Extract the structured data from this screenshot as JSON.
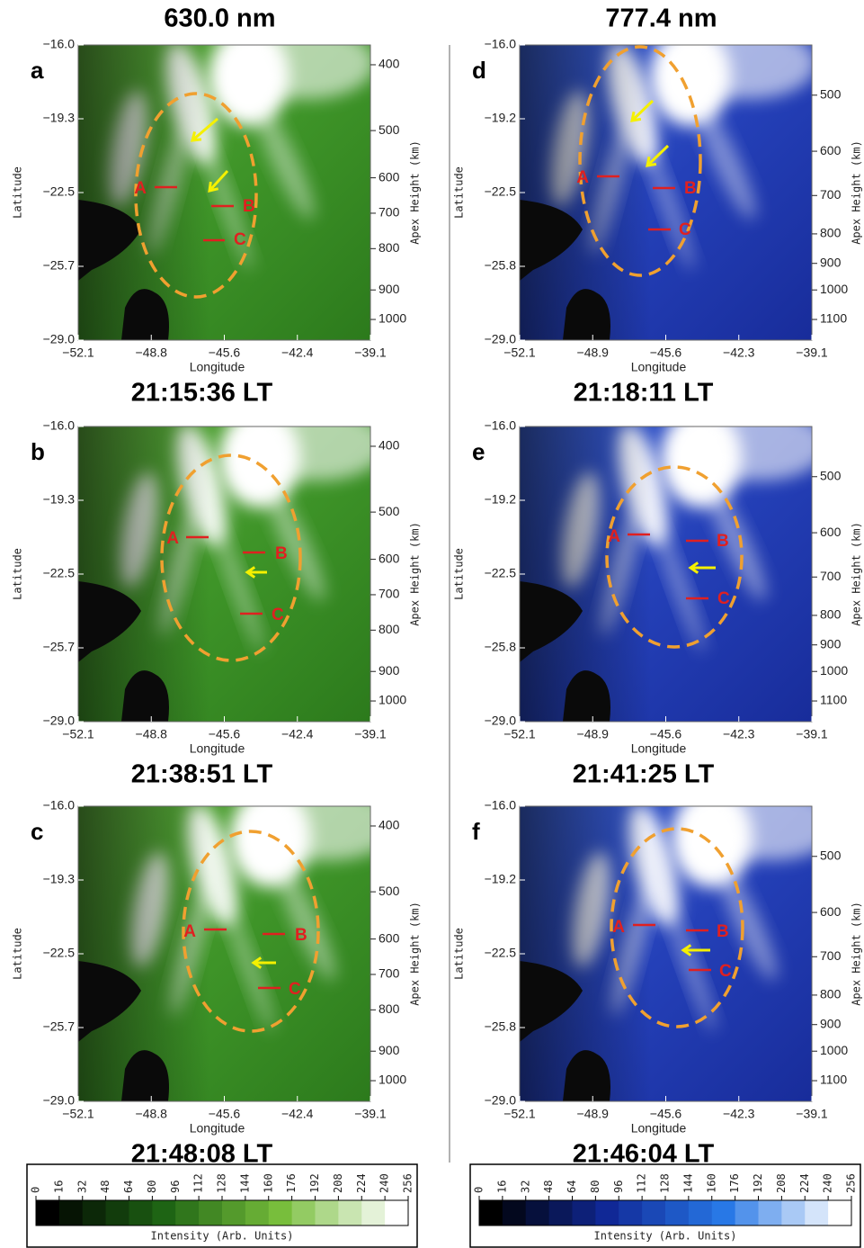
{
  "columns": [
    {
      "title": "630.0 nm",
      "lat_ticks": [
        "−16.0",
        "−19.3",
        "−22.5",
        "−25.7",
        "−29.0"
      ],
      "lon_ticks": [
        "−52.1",
        "−48.8",
        "−45.6",
        "−42.4",
        "−39.1"
      ],
      "height_ticks": [
        400,
        500,
        600,
        700,
        800,
        900,
        1000
      ],
      "panels": [
        {
          "label": "a",
          "time": "21:15:36 LT",
          "markers": [
            "A",
            "B",
            "C"
          ]
        },
        {
          "label": "b",
          "time": "21:38:51 LT",
          "markers": [
            "A",
            "B",
            "C"
          ]
        },
        {
          "label": "c",
          "time": "21:48:08 LT",
          "markers": [
            "A",
            "B",
            "C"
          ]
        }
      ],
      "colorbar": {
        "ticks": [
          0,
          16,
          32,
          48,
          64,
          80,
          96,
          112,
          128,
          144,
          160,
          176,
          192,
          208,
          224,
          240,
          256
        ],
        "label": "Intensity (Arb. Units)"
      }
    },
    {
      "title": "777.4 nm",
      "lat_ticks": [
        "−16.0",
        "−19.2",
        "−22.5",
        "−25.8",
        "−29.0"
      ],
      "lon_ticks": [
        "−52.1",
        "−48.9",
        "−45.6",
        "−42.3",
        "−39.1"
      ],
      "height_ticks": [
        500,
        600,
        700,
        800,
        900,
        1000,
        1100
      ],
      "panels": [
        {
          "label": "d",
          "time": "21:18:11 LT",
          "markers": [
            "A",
            "B",
            "C"
          ]
        },
        {
          "label": "e",
          "time": "21:41:25 LT",
          "markers": [
            "A",
            "B",
            "C"
          ]
        },
        {
          "label": "f",
          "time": "21:46:04 LT",
          "markers": [
            "A",
            "B",
            "C"
          ]
        }
      ],
      "colorbar": {
        "ticks": [
          0,
          16,
          32,
          48,
          64,
          80,
          96,
          112,
          128,
          144,
          160,
          176,
          192,
          208,
          224,
          240,
          256
        ],
        "label": "Intensity (Arb. Units)"
      }
    }
  ],
  "axis_labels": {
    "x": "Longitude",
    "y": "Latitude",
    "y2": "Apex Height (km)"
  }
}
